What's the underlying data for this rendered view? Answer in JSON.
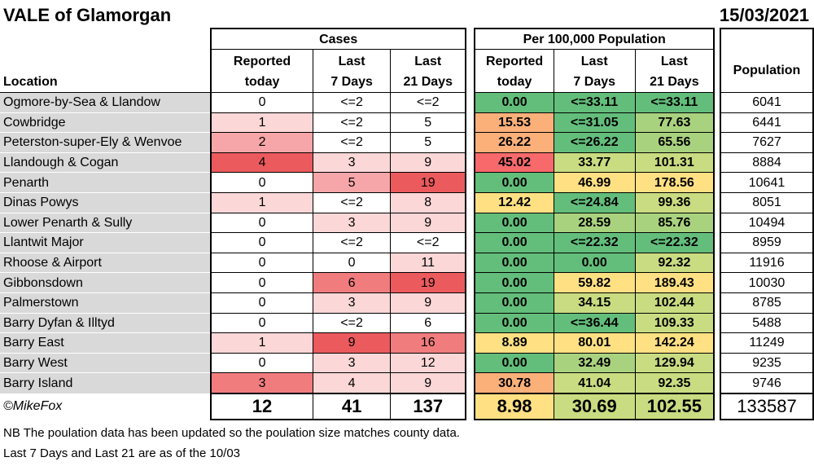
{
  "title": "VALE of Glamorgan",
  "date": "15/03/2021",
  "header": {
    "cases": "Cases",
    "per100k": "Per 100,000 Population",
    "location": "Location",
    "reported": "Reported today",
    "last7": "Last 7 Days",
    "last21": "Last 21 Days",
    "population": "Population"
  },
  "rows": [
    {
      "loc": "Ogmore-by-Sea & Llandow",
      "rep": "0",
      "l7": "<=2",
      "l21": "<=2",
      "prep": "0.00",
      "p7": "<=33.11",
      "p21": "<=33.11",
      "pop": "6041"
    },
    {
      "loc": "Cowbridge",
      "rep": "1",
      "l7": "<=2",
      "l21": "5",
      "prep": "15.53",
      "p7": "<=31.05",
      "p21": "77.63",
      "pop": "6441"
    },
    {
      "loc": "Peterston-super-Ely & Wenvoe",
      "rep": "2",
      "l7": "<=2",
      "l21": "5",
      "prep": "26.22",
      "p7": "<=26.22",
      "p21": "65.56",
      "pop": "7627"
    },
    {
      "loc": "Llandough & Cogan",
      "rep": "4",
      "l7": "3",
      "l21": "9",
      "prep": "45.02",
      "p7": "33.77",
      "p21": "101.31",
      "pop": "8884"
    },
    {
      "loc": "Penarth",
      "rep": "0",
      "l7": "5",
      "l21": "19",
      "prep": "0.00",
      "p7": "46.99",
      "p21": "178.56",
      "pop": "10641"
    },
    {
      "loc": "Dinas Powys",
      "rep": "1",
      "l7": "<=2",
      "l21": "8",
      "prep": "12.42",
      "p7": "<=24.84",
      "p21": "99.36",
      "pop": "8051"
    },
    {
      "loc": "Lower Penarth & Sully",
      "rep": "0",
      "l7": "3",
      "l21": "9",
      "prep": "0.00",
      "p7": "28.59",
      "p21": "85.76",
      "pop": "10494"
    },
    {
      "loc": "Llantwit Major",
      "rep": "0",
      "l7": "<=2",
      "l21": "<=2",
      "prep": "0.00",
      "p7": "<=22.32",
      "p21": "<=22.32",
      "pop": "8959"
    },
    {
      "loc": "Rhoose & Airport",
      "rep": "0",
      "l7": "0",
      "l21": "11",
      "prep": "0.00",
      "p7": "0.00",
      "p21": "92.32",
      "pop": "11916"
    },
    {
      "loc": "Gibbonsdown",
      "rep": "0",
      "l7": "6",
      "l21": "19",
      "prep": "0.00",
      "p7": "59.82",
      "p21": "189.43",
      "pop": "10030"
    },
    {
      "loc": "Palmerstown",
      "rep": "0",
      "l7": "3",
      "l21": "9",
      "prep": "0.00",
      "p7": "34.15",
      "p21": "102.44",
      "pop": "8785"
    },
    {
      "loc": "Barry Dyfan & Illtyd",
      "rep": "0",
      "l7": "<=2",
      "l21": "6",
      "prep": "0.00",
      "p7": "<=36.44",
      "p21": "109.33",
      "pop": "5488"
    },
    {
      "loc": "Barry East",
      "rep": "1",
      "l7": "9",
      "l21": "16",
      "prep": "8.89",
      "p7": "80.01",
      "p21": "142.24",
      "pop": "11249"
    },
    {
      "loc": "Barry West",
      "rep": "0",
      "l7": "3",
      "l21": "12",
      "prep": "0.00",
      "p7": "32.49",
      "p21": "129.94",
      "pop": "9235"
    },
    {
      "loc": "Barry Island",
      "rep": "3",
      "l7": "4",
      "l21": "9",
      "prep": "30.78",
      "p7": "41.04",
      "p21": "92.35",
      "pop": "9746"
    }
  ],
  "totals": {
    "credit": "©MikeFox",
    "rep": "12",
    "l7": "41",
    "l21": "137",
    "prep": "8.98",
    "p7": "30.69",
    "p21": "102.55",
    "pop": "133587"
  },
  "notes": [
    "NB The poulation data has been updated so the poulation size matches county data.",
    "Last 7 Days and Last 21 are as of the 10/03"
  ],
  "colors": {
    "cases_white": "#ffffff",
    "cases_light": "#fbd7d8",
    "cases_mid": "#f6a6a8",
    "cases_strong": "#f07c7e",
    "cases_max": "#eb5a5d",
    "per_green": "#63be7b",
    "per_lightgreen": "#a9d27f",
    "per_yellowgreen": "#c9dc81",
    "per_yellow": "#ffe083",
    "per_orange": "#fbb07a",
    "per_red": "#f8696b"
  },
  "cell_colors": [
    {
      "rep": "cases_white",
      "l7": "cases_white",
      "l21": "cases_white",
      "prep": "per_green",
      "p7": "per_green",
      "p21": "per_green"
    },
    {
      "rep": "cases_light",
      "l7": "cases_white",
      "l21": "cases_white",
      "prep": "per_orange",
      "p7": "per_green",
      "p21": "per_lightgreen"
    },
    {
      "rep": "cases_mid",
      "l7": "cases_white",
      "l21": "cases_white",
      "prep": "per_orange",
      "p7": "per_green",
      "p21": "per_lightgreen"
    },
    {
      "rep": "cases_max",
      "l7": "cases_light",
      "l21": "cases_light",
      "prep": "per_red",
      "p7": "per_yellowgreen",
      "p21": "per_yellowgreen"
    },
    {
      "rep": "cases_white",
      "l7": "cases_mid",
      "l21": "cases_max",
      "prep": "per_green",
      "p7": "per_yellow",
      "p21": "per_yellow"
    },
    {
      "rep": "cases_light",
      "l7": "cases_white",
      "l21": "cases_light",
      "prep": "per_yellow",
      "p7": "per_green",
      "p21": "per_yellowgreen"
    },
    {
      "rep": "cases_white",
      "l7": "cases_light",
      "l21": "cases_light",
      "prep": "per_green",
      "p7": "per_lightgreen",
      "p21": "per_lightgreen"
    },
    {
      "rep": "cases_white",
      "l7": "cases_white",
      "l21": "cases_white",
      "prep": "per_green",
      "p7": "per_green",
      "p21": "per_green"
    },
    {
      "rep": "cases_white",
      "l7": "cases_white",
      "l21": "cases_light",
      "prep": "per_green",
      "p7": "per_green",
      "p21": "per_yellowgreen"
    },
    {
      "rep": "cases_white",
      "l7": "cases_strong",
      "l21": "cases_max",
      "prep": "per_green",
      "p7": "per_yellow",
      "p21": "per_yellow"
    },
    {
      "rep": "cases_white",
      "l7": "cases_light",
      "l21": "cases_light",
      "prep": "per_green",
      "p7": "per_yellowgreen",
      "p21": "per_yellowgreen"
    },
    {
      "rep": "cases_white",
      "l7": "cases_white",
      "l21": "cases_white",
      "prep": "per_green",
      "p7": "per_green",
      "p21": "per_yellowgreen"
    },
    {
      "rep": "cases_light",
      "l7": "cases_max",
      "l21": "cases_strong",
      "prep": "per_yellow",
      "p7": "per_yellow",
      "p21": "per_yellow"
    },
    {
      "rep": "cases_white",
      "l7": "cases_light",
      "l21": "cases_light",
      "prep": "per_green",
      "p7": "per_lightgreen",
      "p21": "per_yellowgreen"
    },
    {
      "rep": "cases_strong",
      "l7": "cases_light",
      "l21": "cases_light",
      "prep": "per_orange",
      "p7": "per_yellowgreen",
      "p21": "per_yellowgreen"
    }
  ],
  "total_colors": {
    "prep": "per_yellow",
    "p7": "per_yellowgreen",
    "p21": "per_yellowgreen"
  }
}
